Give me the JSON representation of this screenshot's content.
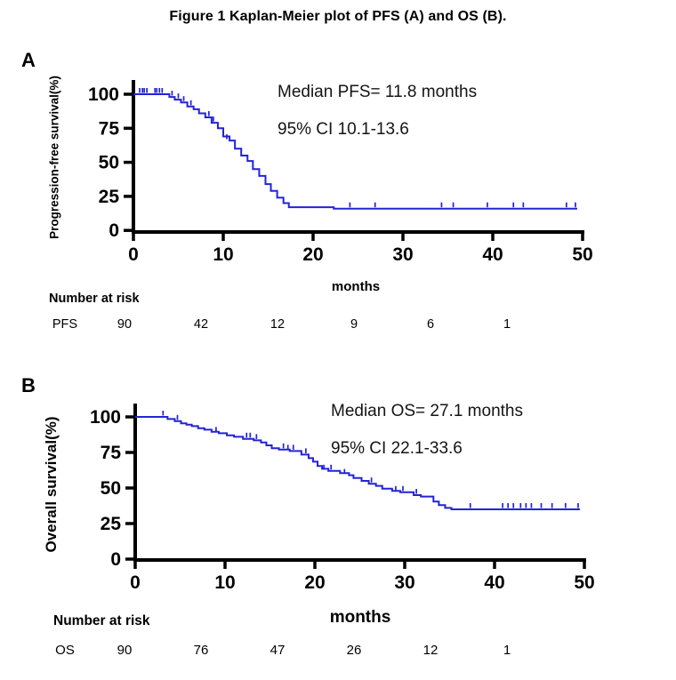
{
  "title": "Figure 1 Kaplan-Meier plot of PFS (A) and OS (B).",
  "colors": {
    "curve": "#2323d6",
    "axis": "#000000",
    "text": "#000000"
  },
  "chart_data": [
    {
      "type": "line",
      "subtype": "kaplan-meier",
      "panel_label": "A",
      "ylabel": "Progression-free survival(%)",
      "xlabel": "months",
      "xlim": [
        0,
        50
      ],
      "ylim": [
        0,
        100
      ],
      "xticks": [
        0,
        10,
        20,
        30,
        40,
        50
      ],
      "yticks": [
        100,
        75,
        50,
        25,
        0
      ],
      "grid": false,
      "legend": "none",
      "annotations": [
        "Median PFS= 11.8 months",
        "95% CI 10.1-13.6"
      ],
      "median_months": 11.8,
      "ci95": [
        10.1,
        13.6
      ],
      "series": [
        {
          "name": "PFS",
          "color": "#2323d6",
          "start": [
            0,
            100
          ],
          "end_time": 49.4,
          "steps": [
            [
              4.0,
              98
            ],
            [
              4.6,
              96
            ],
            [
              5.3,
              94
            ],
            [
              6.0,
              91
            ],
            [
              6.7,
              89
            ],
            [
              7.3,
              86
            ],
            [
              8.0,
              83
            ],
            [
              8.7,
              79
            ],
            [
              9.4,
              75
            ],
            [
              10.0,
              69
            ],
            [
              10.7,
              66
            ],
            [
              11.3,
              60
            ],
            [
              12.0,
              55
            ],
            [
              12.7,
              51
            ],
            [
              13.3,
              45
            ],
            [
              14.0,
              40
            ],
            [
              14.7,
              34
            ],
            [
              15.3,
              29
            ],
            [
              16.0,
              24
            ],
            [
              16.7,
              20
            ],
            [
              17.3,
              17
            ],
            [
              22.3,
              16
            ]
          ],
          "censor_marks": [
            [
              0.7,
              100
            ],
            [
              1.0,
              100
            ],
            [
              1.2,
              100
            ],
            [
              1.5,
              100
            ],
            [
              2.4,
              100
            ],
            [
              2.6,
              100
            ],
            [
              2.9,
              100
            ],
            [
              3.2,
              100
            ],
            [
              4.3,
              98
            ],
            [
              5.0,
              96
            ],
            [
              5.6,
              94
            ],
            [
              6.4,
              91
            ],
            [
              8.4,
              83
            ],
            [
              8.9,
              79
            ],
            [
              10.4,
              66
            ],
            [
              24.1,
              16
            ],
            [
              26.9,
              16
            ],
            [
              34.3,
              16
            ],
            [
              35.6,
              16
            ],
            [
              39.4,
              16
            ],
            [
              42.3,
              16
            ],
            [
              43.4,
              16
            ],
            [
              48.2,
              16
            ],
            [
              49.2,
              16
            ]
          ]
        }
      ],
      "number_at_risk": {
        "header": "Number at risk",
        "label": "PFS",
        "times": [
          0,
          10,
          20,
          30,
          40,
          50
        ],
        "values": [
          90,
          42,
          12,
          9,
          6,
          1
        ]
      }
    },
    {
      "type": "line",
      "subtype": "kaplan-meier",
      "panel_label": "B",
      "ylabel": "Overall survival(%)",
      "xlabel": "months",
      "xlim": [
        0,
        50
      ],
      "ylim": [
        0,
        100
      ],
      "xticks": [
        0,
        10,
        20,
        30,
        40,
        50
      ],
      "yticks": [
        100,
        75,
        50,
        25,
        0
      ],
      "grid": false,
      "legend": "none",
      "annotations": [
        "Median OS= 27.1 months",
        "95% CI 22.1-33.6"
      ],
      "median_months": 27.1,
      "ci95": [
        22.1,
        33.6
      ],
      "series": [
        {
          "name": "OS",
          "color": "#2323d6",
          "start": [
            0,
            100
          ],
          "end_time": 49.5,
          "steps": [
            [
              3.6,
              98.5
            ],
            [
              4.4,
              97
            ],
            [
              5.1,
              95.5
            ],
            [
              5.7,
              94.5
            ],
            [
              6.3,
              93.5
            ],
            [
              7.0,
              92
            ],
            [
              7.7,
              91
            ],
            [
              8.5,
              89.5
            ],
            [
              9.3,
              88.5
            ],
            [
              10.2,
              87
            ],
            [
              11.0,
              86
            ],
            [
              12.0,
              84.5
            ],
            [
              13.2,
              83.5
            ],
            [
              14.0,
              82
            ],
            [
              14.6,
              80
            ],
            [
              15.2,
              78
            ],
            [
              16.0,
              77
            ],
            [
              17.2,
              76
            ],
            [
              18.5,
              73.5
            ],
            [
              19.3,
              71
            ],
            [
              19.8,
              68.5
            ],
            [
              20.3,
              65.5
            ],
            [
              20.8,
              63.5
            ],
            [
              21.5,
              62
            ],
            [
              22.8,
              60.5
            ],
            [
              23.8,
              59
            ],
            [
              24.3,
              57
            ],
            [
              25.2,
              55
            ],
            [
              26.0,
              53
            ],
            [
              26.8,
              51.5
            ],
            [
              27.5,
              49.5
            ],
            [
              28.6,
              48
            ],
            [
              29.5,
              47
            ],
            [
              31.0,
              45
            ],
            [
              31.8,
              44
            ],
            [
              33.2,
              40.5
            ],
            [
              33.8,
              38
            ],
            [
              34.5,
              36
            ],
            [
              35.2,
              35
            ]
          ],
          "censor_marks": [
            [
              3.1,
              100
            ],
            [
              4.7,
              97
            ],
            [
              9.0,
              88.5
            ],
            [
              12.4,
              84.5
            ],
            [
              12.8,
              84.5
            ],
            [
              13.5,
              83.5
            ],
            [
              16.5,
              77
            ],
            [
              17.0,
              76
            ],
            [
              17.6,
              76
            ],
            [
              19.0,
              73.5
            ],
            [
              21.0,
              62
            ],
            [
              21.8,
              62
            ],
            [
              23.3,
              59
            ],
            [
              26.3,
              53
            ],
            [
              29.0,
              47
            ],
            [
              29.8,
              47
            ],
            [
              31.3,
              45
            ],
            [
              37.3,
              35
            ],
            [
              40.9,
              35
            ],
            [
              41.5,
              35
            ],
            [
              42.1,
              35
            ],
            [
              42.9,
              35
            ],
            [
              43.5,
              35
            ],
            [
              44.1,
              35
            ],
            [
              45.2,
              35
            ],
            [
              46.4,
              35
            ],
            [
              47.9,
              35
            ],
            [
              49.3,
              35
            ]
          ]
        }
      ],
      "number_at_risk": {
        "header": "Number at risk",
        "label": "OS",
        "times": [
          0,
          10,
          20,
          30,
          40,
          50
        ],
        "values": [
          90,
          76,
          47,
          26,
          12,
          1
        ]
      }
    }
  ]
}
